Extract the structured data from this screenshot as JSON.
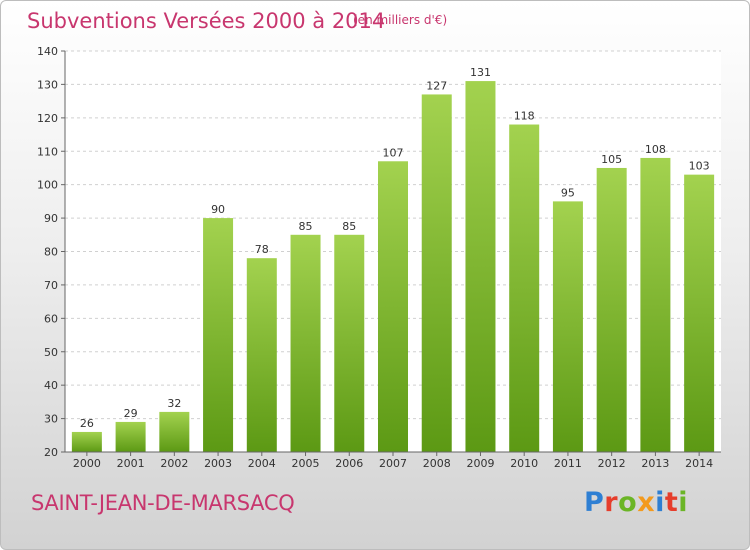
{
  "header": {
    "title": "Subventions Versées 2000 à 2014",
    "unit_note": "(en milliers d'€)"
  },
  "footer": {
    "commune": "SAINT-JEAN-DE-MARSACQ",
    "brand_letters": [
      "P",
      "r",
      "o",
      "x",
      "i",
      "t",
      "i"
    ]
  },
  "colors": {
    "title": "#c8366e",
    "bar_top": "#a3d24f",
    "bar_bottom": "#5c9914",
    "brand": [
      "#2e7fd3",
      "#e63d2b",
      "#6bb526",
      "#f39a1d",
      "#2e7fd3",
      "#e63d2b",
      "#6bb526"
    ]
  },
  "chart_data": {
    "type": "bar",
    "categories": [
      "2000",
      "2001",
      "2002",
      "2003",
      "2004",
      "2005",
      "2006",
      "2007",
      "2008",
      "2009",
      "2010",
      "2011",
      "2012",
      "2013",
      "2014"
    ],
    "values": [
      26,
      29,
      32,
      90,
      78,
      85,
      85,
      107,
      127,
      131,
      118,
      95,
      105,
      108,
      103
    ],
    "ylim": [
      20,
      140
    ],
    "yticks": [
      20,
      30,
      40,
      50,
      60,
      70,
      80,
      90,
      100,
      110,
      120,
      130,
      140
    ],
    "grid": "horizontal-dashed",
    "data_labels": true
  }
}
